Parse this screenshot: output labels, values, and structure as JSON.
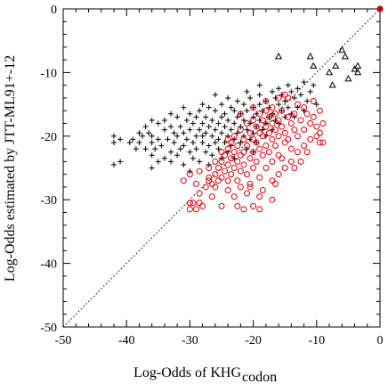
{
  "chart_data": {
    "type": "scatter",
    "xlabel": "Log-Odds of KHG",
    "xlabel_subscript": "codon",
    "ylabel": "Log-Odds estimated by JTT-ML91+-12",
    "xlim": [
      -50,
      0
    ],
    "ylim": [
      -50,
      0
    ],
    "x_ticks": [
      -50,
      -40,
      -30,
      -20,
      -10,
      0
    ],
    "y_ticks": [
      -50,
      -40,
      -30,
      -20,
      -10,
      0
    ],
    "grid": false,
    "reference_line": "y = x (dotted diagonal)",
    "series": [
      {
        "marker": "plus",
        "color": "#000000",
        "points": [
          [
            -42,
            -20
          ],
          [
            -42,
            -21
          ],
          [
            -42,
            -24.5
          ],
          [
            -41,
            -24
          ],
          [
            -41,
            -20.5
          ],
          [
            -39.5,
            -21
          ],
          [
            -39,
            -20.5
          ],
          [
            -38.5,
            -22
          ],
          [
            -38,
            -21
          ],
          [
            -38,
            -19.5
          ],
          [
            -37.5,
            -20
          ],
          [
            -37,
            -22
          ],
          [
            -37,
            -18.5
          ],
          [
            -36.5,
            -19.5
          ],
          [
            -36,
            -21
          ],
          [
            -36,
            -20
          ],
          [
            -36,
            -23
          ],
          [
            -36,
            -25
          ],
          [
            -35.5,
            -22
          ],
          [
            -35,
            -24
          ],
          [
            -35,
            -20.5
          ],
          [
            -35,
            -18
          ],
          [
            -34.5,
            -21.5
          ],
          [
            -34,
            -23.5
          ],
          [
            -34,
            -19
          ],
          [
            -34,
            -17.5
          ],
          [
            -33.5,
            -20.5
          ],
          [
            -33,
            -22.5
          ],
          [
            -33,
            -24
          ],
          [
            -33,
            -18.5
          ],
          [
            -32.5,
            -21
          ],
          [
            -32.5,
            -19.5
          ],
          [
            -32,
            -17
          ],
          [
            -32,
            -23
          ],
          [
            -32,
            -20
          ],
          [
            -31.5,
            -22
          ],
          [
            -31.5,
            -18.5
          ],
          [
            -31,
            -19.5
          ],
          [
            -31,
            -21.5
          ],
          [
            -31,
            -24.5
          ],
          [
            -30.5,
            -17.5
          ],
          [
            -30.5,
            -20.5
          ],
          [
            -30,
            -22.5
          ],
          [
            -30,
            -19
          ],
          [
            -30,
            -16.5
          ],
          [
            -29.5,
            -21
          ],
          [
            -29.5,
            -23.5
          ],
          [
            -29.5,
            -18
          ],
          [
            -29,
            -20
          ],
          [
            -29,
            -17
          ],
          [
            -29,
            -22
          ],
          [
            -28.5,
            -19
          ],
          [
            -28.5,
            -24
          ],
          [
            -28.5,
            -16
          ],
          [
            -28,
            -21
          ],
          [
            -28,
            -18
          ],
          [
            -28,
            -20
          ],
          [
            -27.5,
            -22.5
          ],
          [
            -27.5,
            -17
          ],
          [
            -27.5,
            -19.5
          ],
          [
            -27,
            -15.5
          ],
          [
            -27,
            -21.5
          ],
          [
            -27,
            -18.5
          ],
          [
            -26.5,
            -20
          ],
          [
            -26.5,
            -23
          ],
          [
            -26.5,
            -17.5
          ],
          [
            -26,
            -19
          ],
          [
            -26,
            -21
          ],
          [
            -26,
            -16
          ],
          [
            -25.5,
            -18
          ],
          [
            -25.5,
            -20.5
          ],
          [
            -25.5,
            -22
          ],
          [
            -25,
            -17
          ],
          [
            -25,
            -19.5
          ],
          [
            -25,
            -15
          ],
          [
            -24.5,
            -21
          ],
          [
            -24.5,
            -18.5
          ],
          [
            -24.5,
            -16.5
          ],
          [
            -24,
            -20
          ],
          [
            -24,
            -17.5
          ],
          [
            -24,
            -22.5
          ],
          [
            -23.5,
            -19
          ],
          [
            -23.5,
            -15.5
          ],
          [
            -23.5,
            -21.5
          ],
          [
            -23,
            -18
          ],
          [
            -23,
            -16
          ],
          [
            -23,
            -20.5
          ],
          [
            -22.5,
            -17
          ],
          [
            -22.5,
            -19.5
          ],
          [
            -22.5,
            -14.5
          ],
          [
            -22,
            -18.5
          ],
          [
            -22,
            -21
          ],
          [
            -22,
            -16.5
          ],
          [
            -21.5,
            -20
          ],
          [
            -21.5,
            -17.5
          ],
          [
            -21.5,
            -15
          ],
          [
            -21,
            -19
          ],
          [
            -21,
            -16
          ],
          [
            -21,
            -22
          ],
          [
            -20.5,
            -18
          ],
          [
            -20.5,
            -20.5
          ],
          [
            -20.5,
            -14
          ],
          [
            -20,
            -17
          ],
          [
            -20,
            -19.5
          ],
          [
            -20,
            -15.5
          ],
          [
            -19.5,
            -18.5
          ],
          [
            -19.5,
            -16.5
          ],
          [
            -19.5,
            -21
          ],
          [
            -19,
            -15
          ],
          [
            -19,
            -17.5
          ],
          [
            -19,
            -13.5
          ],
          [
            -18.5,
            -19
          ],
          [
            -18.5,
            -16
          ],
          [
            -18,
            -14.5
          ],
          [
            -18,
            -18
          ],
          [
            -18,
            -20
          ],
          [
            -17.5,
            -15.5
          ],
          [
            -17.5,
            -17
          ],
          [
            -17,
            -13
          ],
          [
            -17,
            -16.5
          ],
          [
            -17,
            -19
          ],
          [
            -16.5,
            -14
          ],
          [
            -16.5,
            -17.5
          ],
          [
            -16,
            -12.5
          ],
          [
            -16,
            -15
          ],
          [
            -16,
            -18
          ],
          [
            -15.5,
            -16
          ],
          [
            -15.5,
            -13.5
          ],
          [
            -15,
            -17
          ],
          [
            -15,
            -14.5
          ],
          [
            -14.5,
            -12
          ],
          [
            -14.5,
            -15.5
          ],
          [
            -14,
            -16.5
          ],
          [
            -14,
            -13
          ],
          [
            -13.5,
            -14
          ],
          [
            -13.5,
            -17
          ],
          [
            -13,
            -12.5
          ],
          [
            -13,
            -15.5
          ],
          [
            -12.5,
            -13.5
          ],
          [
            -12,
            -11.5
          ],
          [
            -12,
            -16
          ],
          [
            -11.5,
            -14.5
          ],
          [
            -11,
            -13
          ],
          [
            -10.5,
            -12
          ],
          [
            -10,
            -15
          ],
          [
            -25,
            -23.5
          ],
          [
            -27,
            -24.5
          ],
          [
            -30,
            -25.5
          ],
          [
            -23,
            -23.5
          ],
          [
            -20,
            -22.5
          ],
          [
            -33,
            -16.5
          ],
          [
            -28,
            -15
          ],
          [
            -24,
            -14
          ],
          [
            -21,
            -13
          ],
          [
            -19,
            -12
          ],
          [
            -36,
            -17.5
          ],
          [
            -31,
            -15.5
          ],
          [
            -26,
            -13.5
          ]
        ]
      },
      {
        "marker": "circle",
        "color": "#e8000b",
        "points": [
          [
            -30,
            -30.5
          ],
          [
            -30,
            -31.5
          ],
          [
            -29.5,
            -30.5
          ],
          [
            -29,
            -31.5
          ],
          [
            -28.5,
            -30.5
          ],
          [
            -28,
            -31
          ],
          [
            -28.5,
            -29
          ],
          [
            -27.5,
            -28
          ],
          [
            -27,
            -27
          ],
          [
            -27,
            -26.5
          ],
          [
            -26.5,
            -27.5
          ],
          [
            -26,
            -26
          ],
          [
            -26,
            -28
          ],
          [
            -25.5,
            -25
          ],
          [
            -25.5,
            -27
          ],
          [
            -25,
            -24
          ],
          [
            -25,
            -26.5
          ],
          [
            -24.5,
            -25.5
          ],
          [
            -24.5,
            -23
          ],
          [
            -24,
            -22
          ],
          [
            -24,
            -24.5
          ],
          [
            -24,
            -27
          ],
          [
            -23.5,
            -21
          ],
          [
            -23.5,
            -23.5
          ],
          [
            -23.5,
            -26
          ],
          [
            -23,
            -22.5
          ],
          [
            -23,
            -20
          ],
          [
            -23,
            -25
          ],
          [
            -22.5,
            -24
          ],
          [
            -22.5,
            -21.5
          ],
          [
            -22.5,
            -27
          ],
          [
            -22,
            -19
          ],
          [
            -22,
            -23
          ],
          [
            -22,
            -25.5
          ],
          [
            -21.5,
            -20.5
          ],
          [
            -21.5,
            -22.5
          ],
          [
            -21.5,
            -24.5
          ],
          [
            -21,
            -18
          ],
          [
            -21,
            -21.5
          ],
          [
            -21,
            -26
          ],
          [
            -20.5,
            -19.5
          ],
          [
            -20.5,
            -23.5
          ],
          [
            -20.5,
            -28
          ],
          [
            -20,
            -17.5
          ],
          [
            -20,
            -20.5
          ],
          [
            -20,
            -22.5
          ],
          [
            -20,
            -25
          ],
          [
            -19.5,
            -18.5
          ],
          [
            -19.5,
            -21
          ],
          [
            -19.5,
            -24
          ],
          [
            -19,
            -16.5
          ],
          [
            -19,
            -19.5
          ],
          [
            -19,
            -22
          ],
          [
            -19,
            -26.5
          ],
          [
            -18.5,
            -17.5
          ],
          [
            -18.5,
            -20
          ],
          [
            -18.5,
            -23
          ],
          [
            -18,
            -16
          ],
          [
            -18,
            -18.5
          ],
          [
            -18,
            -21.5
          ],
          [
            -18,
            -25
          ],
          [
            -17.5,
            -17
          ],
          [
            -17.5,
            -19.5
          ],
          [
            -17.5,
            -22.5
          ],
          [
            -17,
            -15.5
          ],
          [
            -17,
            -18
          ],
          [
            -17,
            -20.5
          ],
          [
            -17,
            -24
          ],
          [
            -16.5,
            -16.5
          ],
          [
            -16.5,
            -19
          ],
          [
            -16.5,
            -21.5
          ],
          [
            -16,
            -17.5
          ],
          [
            -16,
            -20
          ],
          [
            -16,
            -23
          ],
          [
            -15.5,
            -18.5
          ],
          [
            -15.5,
            -16
          ],
          [
            -15,
            -19.5
          ],
          [
            -15,
            -21
          ],
          [
            -14.5,
            -17
          ],
          [
            -14.5,
            -20.5
          ],
          [
            -14,
            -18
          ],
          [
            -14,
            -22
          ],
          [
            -13.5,
            -19
          ],
          [
            -13.5,
            -16.5
          ],
          [
            -13,
            -20
          ],
          [
            -12.5,
            -17.5
          ],
          [
            -12,
            -19
          ],
          [
            -11.5,
            -16.5
          ],
          [
            -11,
            -18
          ],
          [
            -10.5,
            -17
          ],
          [
            -10,
            -20
          ],
          [
            -10,
            -18.5
          ],
          [
            -9.5,
            -21
          ],
          [
            -9.5,
            -19.5
          ],
          [
            -9,
            -18
          ],
          [
            -9,
            -21
          ],
          [
            -26,
            -24
          ],
          [
            -25,
            -22.5
          ],
          [
            -24,
            -20.5
          ],
          [
            -28.5,
            -25.5
          ],
          [
            -27,
            -25
          ],
          [
            -30,
            -26
          ],
          [
            -31,
            -27
          ],
          [
            -29,
            -27.5
          ],
          [
            -22,
            -28
          ],
          [
            -21,
            -29
          ],
          [
            -19,
            -29.5
          ],
          [
            -17,
            -30
          ],
          [
            -20,
            -31
          ],
          [
            -21.5,
            -31.5
          ],
          [
            -20.5,
            -27.5
          ],
          [
            -18.5,
            -28.5
          ],
          [
            -17,
            -27
          ],
          [
            -16,
            -26
          ],
          [
            -15,
            -25
          ],
          [
            -14,
            -24
          ],
          [
            -15.5,
            -23.5
          ],
          [
            -13,
            -22.5
          ],
          [
            -12,
            -21.5
          ],
          [
            -11,
            -20.5
          ],
          [
            -23,
            -29.5
          ],
          [
            -25,
            -31
          ],
          [
            -24,
            -28.5
          ],
          [
            -26.5,
            -29.5
          ],
          [
            -22.5,
            -31
          ],
          [
            -19,
            -31.5
          ],
          [
            -16.5,
            -27.5
          ],
          [
            -13.5,
            -25
          ],
          [
            -12.5,
            -24
          ],
          [
            -11.5,
            -22.5
          ],
          [
            -14.5,
            -14
          ],
          [
            -13,
            -15
          ],
          [
            -12,
            -15.5
          ],
          [
            -10.5,
            -14.5
          ],
          [
            -9.5,
            -16
          ],
          [
            -15,
            -13.5
          ],
          [
            -16,
            -14
          ],
          [
            -18,
            -14.5
          ],
          [
            -20,
            -15.5
          ],
          [
            -22,
            -16.5
          ]
        ]
      },
      {
        "marker": "triangle",
        "color": "#000000",
        "points": [
          [
            -16,
            -7.5
          ],
          [
            -11,
            -7.5
          ],
          [
            -10.5,
            -9
          ],
          [
            -8,
            -10
          ],
          [
            -7,
            -9
          ],
          [
            -6,
            -6.5
          ],
          [
            -5.5,
            -7.5
          ],
          [
            -4,
            -9.5
          ],
          [
            -3.5,
            -9
          ],
          [
            -3.5,
            -10
          ],
          [
            -5,
            -11
          ],
          [
            -7.5,
            -12
          ]
        ]
      },
      {
        "marker": "dot",
        "color": "#cc0000",
        "points": [
          [
            0,
            0
          ]
        ]
      }
    ]
  }
}
